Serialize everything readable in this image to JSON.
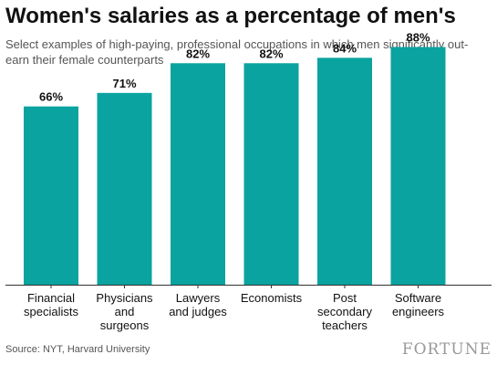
{
  "header": {
    "title": "Women's salaries as a percentage of men's",
    "subtitle": "Select examples of high-paying, professional occupations in which men significantly out-earn their female counterparts"
  },
  "footer": {
    "source": "Source: NYT, Harvard University",
    "logo": "FORTUNE"
  },
  "colors": {
    "bar": "#0aa3a0",
    "text": "#111111",
    "muted": "#555555"
  },
  "chart_data": {
    "type": "bar",
    "categories": [
      [
        "Financial",
        "specialists"
      ],
      [
        "Physicians",
        "and",
        "surgeons"
      ],
      [
        "Lawyers",
        "and judges"
      ],
      [
        "Economists"
      ],
      [
        "Post",
        "secondary",
        "teachers"
      ],
      [
        "Software",
        "engineers"
      ]
    ],
    "values": [
      66,
      71,
      82,
      82,
      84,
      88
    ],
    "value_labels": [
      "66%",
      "71%",
      "82%",
      "82%",
      "84%",
      "88%"
    ],
    "ylim": [
      0,
      100
    ],
    "grid": false,
    "legend": "none",
    "xlabel": "",
    "ylabel": ""
  }
}
